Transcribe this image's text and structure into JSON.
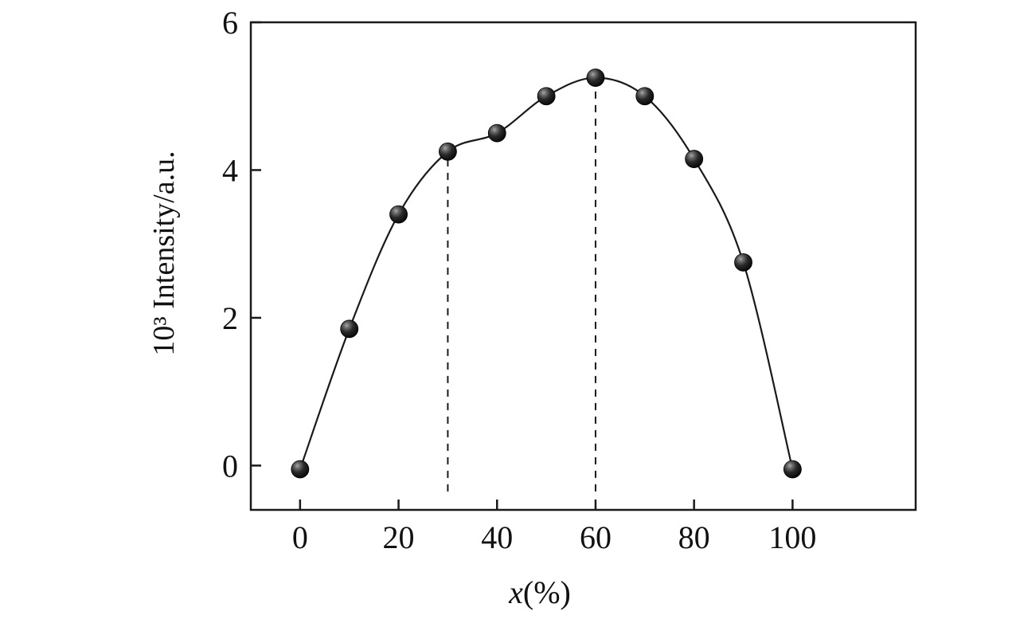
{
  "chart_data": {
    "type": "scatter",
    "series": [
      {
        "name": "intensity-vs-x",
        "x": [
          0,
          10,
          20,
          30,
          40,
          50,
          60,
          70,
          80,
          90,
          100
        ],
        "y": [
          -0.05,
          1.85,
          3.4,
          4.25,
          4.5,
          5.0,
          5.25,
          5.0,
          4.15,
          2.75,
          -0.05
        ]
      }
    ],
    "title": "",
    "xlabel": "x(%)",
    "xlabel_var": "x",
    "xlabel_unit": "(%)",
    "ylabel": "10³ Intensity/a.u.",
    "xticks": [
      0,
      20,
      40,
      60,
      80,
      100
    ],
    "yticks": [
      0,
      2,
      4,
      6
    ],
    "xlim": [
      -10,
      125
    ],
    "ylim": [
      -0.6,
      6
    ],
    "grid": false,
    "legend": false,
    "dashed_guides": [
      {
        "x": 30,
        "y_from": -0.35,
        "y_to": 4.25
      },
      {
        "x": 60,
        "y_from": -0.35,
        "y_to": 5.25
      }
    ],
    "peak": {
      "x": 60,
      "y": 5.25
    },
    "colors": {
      "line": "#1a1a1a",
      "marker": "#0a0a0a",
      "axis": "#1a1a1a",
      "dashed": "#1a1a1a",
      "background": "#ffffff"
    }
  }
}
